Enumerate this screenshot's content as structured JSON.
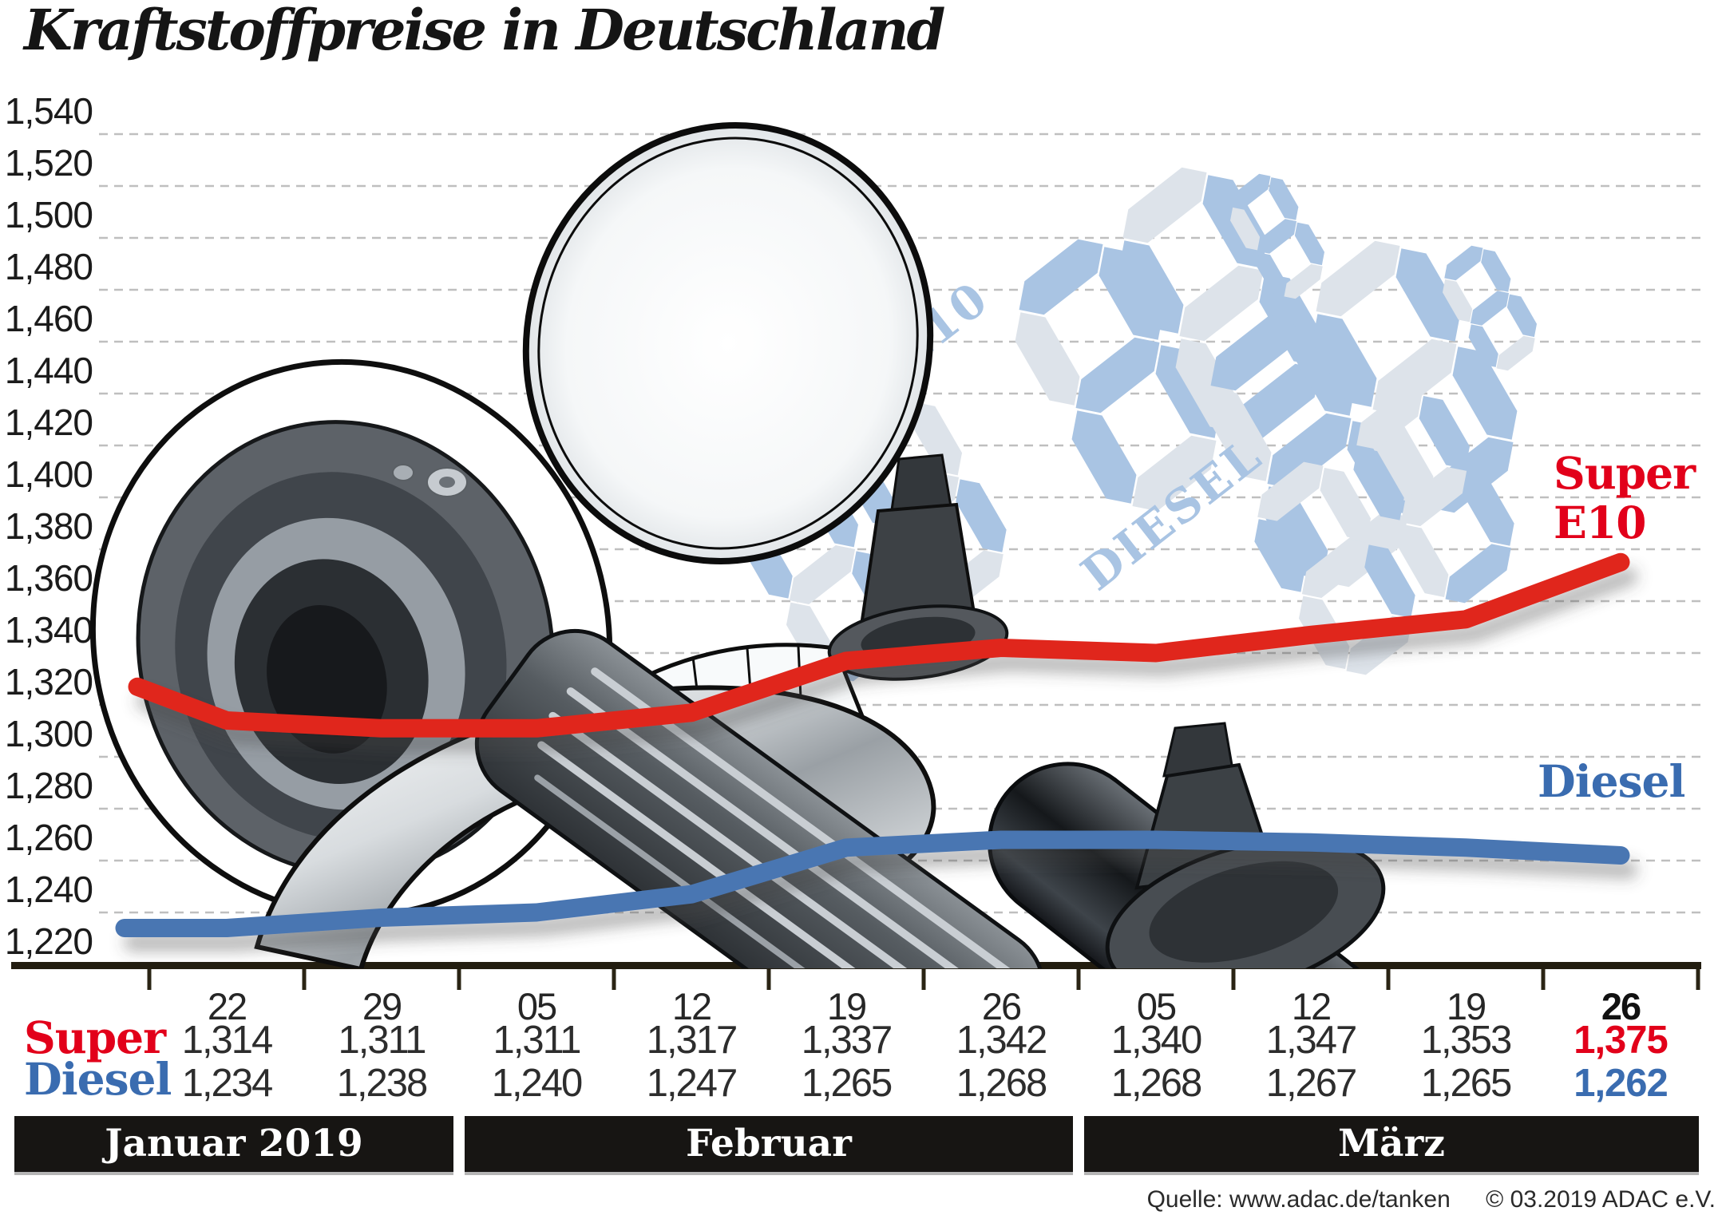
{
  "title": "Kraftstoffpreise in Deutschland",
  "chart_data": {
    "type": "line",
    "title": "Kraftstoffpreise in Deutschland",
    "x_tick_labels": [
      "22",
      "29",
      "05",
      "12",
      "19",
      "26",
      "05",
      "12",
      "19",
      "26"
    ],
    "months": [
      {
        "label": "Januar 2019",
        "columns": [
          0,
          1
        ]
      },
      {
        "label": "Februar",
        "columns": [
          2,
          3,
          4,
          5
        ]
      },
      {
        "label": "März",
        "columns": [
          6,
          7,
          8,
          9
        ]
      }
    ],
    "y_axis": {
      "min": 1.22,
      "max": 1.54,
      "step": 0.02,
      "format": "comma-decimal"
    },
    "grid": "horizontal-dashed",
    "legend_position": "right-inline",
    "series": [
      {
        "name": "Super E10",
        "label_lines": [
          "Super",
          "E10"
        ],
        "color": "#e0251b",
        "text_color": "#e2001a",
        "lead_in_value": 1.327,
        "values": [
          1.314,
          1.311,
          1.311,
          1.317,
          1.337,
          1.342,
          1.34,
          1.347,
          1.353,
          1.375
        ]
      },
      {
        "name": "Diesel",
        "label_lines": [
          "Diesel"
        ],
        "color": "#4a76b2",
        "text_color": "#3a6cb0",
        "lead_in_value": 1.234,
        "values": [
          1.234,
          1.238,
          1.24,
          1.247,
          1.265,
          1.268,
          1.268,
          1.267,
          1.265,
          1.262
        ]
      }
    ]
  },
  "table": {
    "row_labels": [
      "Super",
      "Diesel"
    ]
  },
  "decor": {
    "pump_display_labels": [
      "SUPER E10",
      "DIESEL"
    ],
    "segment_blue": "#a9c4e3",
    "segment_gray": "#dde3ea"
  },
  "source": {
    "left": "Quelle: www.adac.de/tanken",
    "right": "© 03.2019  ADAC e.V."
  }
}
